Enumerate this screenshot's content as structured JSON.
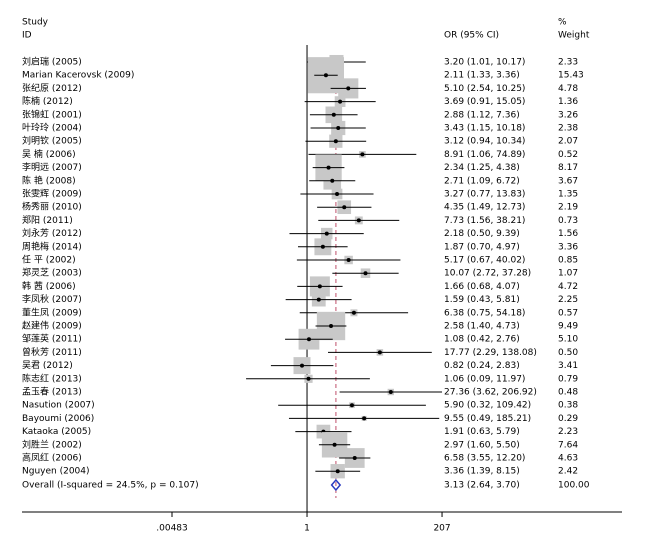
{
  "chart_data": {
    "type": "forest",
    "study_header": [
      "Study",
      "ID"
    ],
    "ci_header": "OR (95% CI)",
    "weight_header": [
      "%",
      "Weight"
    ],
    "categories": [
      "刘启瑞 (2005)",
      "Marian Kacerovsk (2009)",
      "张纪原 (2012)",
      "陈楠 (2012)",
      "张锦虹 (2001)",
      "叶玲玲 (2004)",
      "刘明钦 (2005)",
      "吴 楠 (2006)",
      "李明远 (2007)",
      "陈 艳 (2008)",
      "张雯辉 (2009)",
      "杨秀丽 (2010)",
      "郑阳 (2011)",
      "刘永芳 (2012)",
      "周艳梅 (2014)",
      "任 平 (2002)",
      "郑灵芝 (2003)",
      "韩 茜 (2006)",
      "李凤秋 (2007)",
      "董生凤 (2009)",
      "赵建伟 (2009)",
      "邹莲英 (2011)",
      "曾秋芳 (2011)",
      "吴君 (2012)",
      "陈志红 (2013)",
      "孟玉春 (2013)",
      "Nasution (2007)",
      "Bayoumi (2006)",
      "Kataoka (2005)",
      "刘胜兰 (2002)",
      "高凤红 (2006)",
      "Nguyen (2004)",
      "Overall (I-squared = 24.5%, p = 0.107)"
    ],
    "values": [
      3.2,
      2.11,
      5.1,
      3.69,
      2.88,
      3.43,
      3.12,
      8.91,
      2.34,
      2.71,
      3.27,
      4.35,
      7.73,
      2.18,
      1.87,
      5.17,
      10.07,
      1.66,
      1.59,
      6.38,
      2.58,
      1.08,
      17.77,
      0.82,
      1.06,
      27.36,
      5.9,
      9.55,
      1.91,
      2.97,
      6.58,
      3.36,
      3.13
    ],
    "lower": [
      1.01,
      1.33,
      2.54,
      0.91,
      1.12,
      1.15,
      0.94,
      1.06,
      1.25,
      1.09,
      0.77,
      1.49,
      1.56,
      0.5,
      0.7,
      0.67,
      2.72,
      0.68,
      0.43,
      0.75,
      1.4,
      0.42,
      2.29,
      0.24,
      0.09,
      3.62,
      0.32,
      0.49,
      0.63,
      1.6,
      3.55,
      1.39,
      2.64
    ],
    "upper": [
      10.17,
      3.36,
      10.25,
      15.05,
      7.36,
      10.18,
      10.34,
      74.89,
      4.38,
      6.72,
      13.83,
      12.73,
      38.21,
      9.39,
      4.97,
      40.02,
      37.28,
      4.07,
      5.81,
      54.18,
      4.73,
      2.76,
      138.08,
      2.83,
      11.97,
      206.92,
      109.42,
      185.21,
      5.79,
      5.5,
      12.2,
      8.15,
      3.7
    ],
    "value_labels": [
      "3.20 (1.01, 10.17)",
      "2.11 (1.33, 3.36)",
      "5.10 (2.54, 10.25)",
      "3.69 (0.91, 15.05)",
      "2.88 (1.12, 7.36)",
      "3.43 (1.15, 10.18)",
      "3.12 (0.94, 10.34)",
      "8.91 (1.06, 74.89)",
      "2.34 (1.25, 4.38)",
      "2.71 (1.09, 6.72)",
      "3.27 (0.77, 13.83)",
      "4.35 (1.49, 12.73)",
      "7.73 (1.56, 38.21)",
      "2.18 (0.50, 9.39)",
      "1.87 (0.70, 4.97)",
      "5.17 (0.67, 40.02)",
      "10.07 (2.72, 37.28)",
      "1.66 (0.68, 4.07)",
      "1.59 (0.43, 5.81)",
      "6.38 (0.75, 54.18)",
      "2.58 (1.40, 4.73)",
      "1.08 (0.42, 2.76)",
      "17.77 (2.29, 138.08)",
      "0.82 (0.24, 2.83)",
      "1.06 (0.09, 11.97)",
      "27.36 (3.62, 206.92)",
      "5.90 (0.32, 109.42)",
      "9.55 (0.49, 185.21)",
      "1.91 (0.63, 5.79)",
      "2.97 (1.60, 5.50)",
      "6.58 (3.55, 12.20)",
      "3.36 (1.39, 8.15)",
      "3.13 (2.64, 3.70)"
    ],
    "weights": [
      2.33,
      15.43,
      4.78,
      1.36,
      3.26,
      2.38,
      2.07,
      0.52,
      8.17,
      3.67,
      1.35,
      2.19,
      0.73,
      1.56,
      3.36,
      0.85,
      1.07,
      4.72,
      2.25,
      0.57,
      9.49,
      5.1,
      0.5,
      3.41,
      0.79,
      0.48,
      0.38,
      0.29,
      2.23,
      7.64,
      4.63,
      2.42,
      100
    ],
    "weight_labels": [
      "2.33",
      "15.43",
      "4.78",
      "1.36",
      "3.26",
      "2.38",
      "2.07",
      "0.52",
      "8.17",
      "3.67",
      "1.35",
      "2.19",
      "0.73",
      "1.56",
      "3.36",
      "0.85",
      "1.07",
      "4.72",
      "2.25",
      "0.57",
      "9.49",
      "5.10",
      "0.50",
      "3.41",
      "0.79",
      "0.48",
      "0.38",
      "0.29",
      "2.23",
      "7.64",
      "4.63",
      "2.42",
      "100.00"
    ],
    "xlim": [
      1.29e-05,
      253000
    ],
    "xticks": [
      {
        "value": 0.00483,
        "label": ".00483"
      },
      1,
      207
    ],
    "log_x": true,
    "box_color": "#c8c8c8",
    "overall_color": "#2b3bbf",
    "overall_line_color": "#c0506a"
  }
}
